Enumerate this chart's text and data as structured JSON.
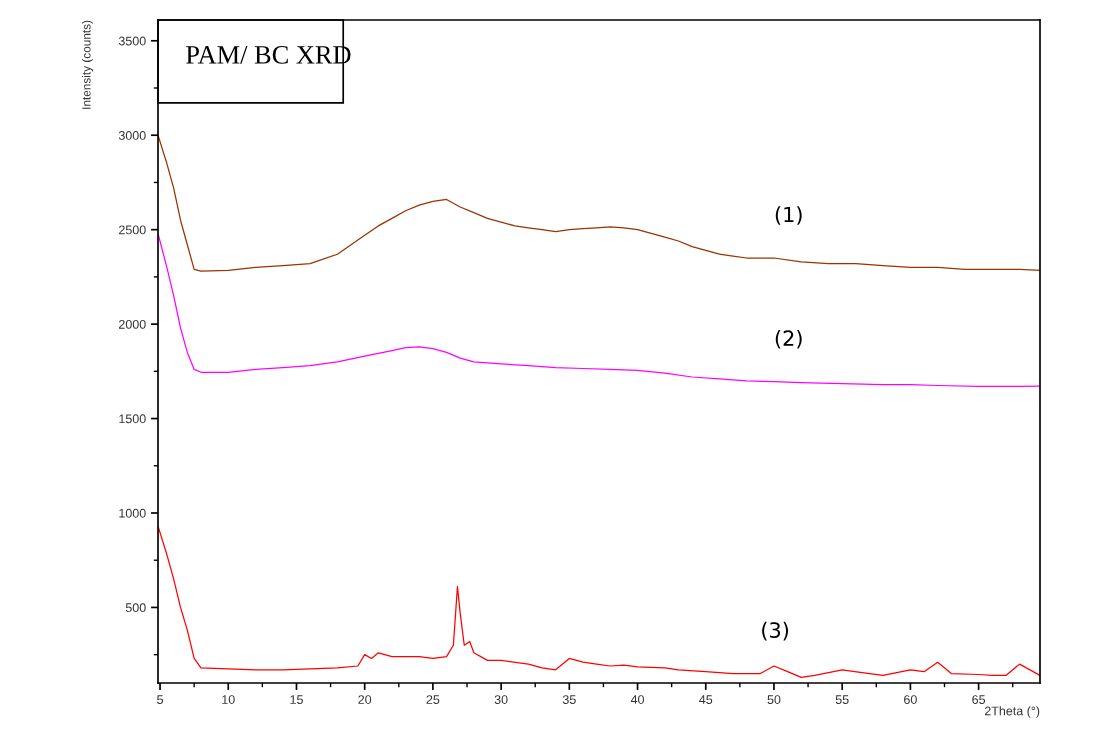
{
  "chart_data": {
    "type": "line",
    "title": "PAM/ BC XRD",
    "xlabel": "2Theta (°)",
    "ylabel": "Intensity (counts)",
    "xlim": [
      4.85,
      69.5
    ],
    "ylim": [
      100,
      3610
    ],
    "xticks": [
      5,
      {
        "value": 7.5,
        "label": null
      },
      10,
      {
        "value": 12.5,
        "label": null
      },
      15,
      {
        "value": 17.5,
        "label": null
      },
      20,
      {
        "value": 22.5,
        "label": null
      },
      25,
      {
        "value": 27.5,
        "label": null
      },
      30,
      {
        "value": 32.5,
        "label": null
      },
      35,
      {
        "value": 37.5,
        "label": null
      },
      40,
      {
        "value": 42.5,
        "label": null
      },
      45,
      {
        "value": 47.5,
        "label": null
      },
      50,
      {
        "value": 52.5,
        "label": null
      },
      55,
      {
        "value": 57.5,
        "label": null
      },
      60,
      {
        "value": 62.5,
        "label": null
      },
      65,
      {
        "value": 67.5,
        "label": null
      }
    ],
    "yticks": [
      {
        "value": 250,
        "label": null
      },
      500,
      {
        "value": 750,
        "label": null
      },
      1000,
      {
        "value": 1250,
        "label": null
      },
      1500,
      {
        "value": 1750,
        "label": null
      },
      2000,
      {
        "value": 2250,
        "label": null
      },
      2500,
      {
        "value": 2750,
        "label": null
      },
      3000,
      {
        "value": 3250,
        "label": null
      },
      3500
    ],
    "grid": false,
    "marker": "none",
    "line_style": "solid",
    "series": [
      {
        "name": "(1)",
        "color": "#993300",
        "x": [
          4.85,
          5.5,
          6,
          6.5,
          7,
          7.5,
          8,
          10,
          12,
          14,
          16,
          18,
          19,
          20,
          21,
          22,
          23,
          24,
          25,
          26,
          26.5,
          27,
          28,
          29,
          30,
          31,
          32,
          33,
          34,
          35,
          36,
          37,
          38,
          39,
          40,
          41,
          42,
          43,
          44,
          45,
          46,
          47,
          48,
          50,
          52,
          54,
          56,
          58,
          60,
          62,
          64,
          66,
          68,
          69.5
        ],
        "values": [
          3000,
          2850,
          2720,
          2550,
          2420,
          2290,
          2280,
          2285,
          2300,
          2310,
          2320,
          2370,
          2420,
          2470,
          2520,
          2560,
          2600,
          2630,
          2650,
          2660,
          2640,
          2620,
          2590,
          2560,
          2540,
          2520,
          2510,
          2500,
          2490,
          2500,
          2505,
          2510,
          2515,
          2510,
          2500,
          2480,
          2460,
          2440,
          2410,
          2390,
          2370,
          2360,
          2350,
          2350,
          2330,
          2320,
          2320,
          2310,
          2300,
          2300,
          2290,
          2290,
          2290,
          2285
        ]
      },
      {
        "name": "(2)",
        "color": "#ff00ff",
        "x": [
          4.85,
          5.5,
          6,
          6.5,
          7,
          7.5,
          8,
          10,
          12,
          14,
          16,
          18,
          20,
          22,
          23,
          24,
          25,
          26,
          27,
          28,
          30,
          32,
          34,
          36,
          38,
          40,
          42,
          44,
          46,
          48,
          50,
          52,
          55,
          58,
          60,
          62,
          65,
          68,
          69.5
        ],
        "values": [
          2480,
          2300,
          2150,
          1980,
          1850,
          1760,
          1745,
          1745,
          1760,
          1770,
          1780,
          1800,
          1830,
          1860,
          1875,
          1880,
          1870,
          1850,
          1820,
          1800,
          1790,
          1780,
          1770,
          1765,
          1760,
          1755,
          1740,
          1720,
          1710,
          1700,
          1695,
          1690,
          1685,
          1680,
          1680,
          1675,
          1670,
          1670,
          1672
        ]
      },
      {
        "name": "(3)",
        "color": "#ff0000",
        "x": [
          4.85,
          5.5,
          6,
          6.5,
          7,
          7.5,
          8,
          10,
          12,
          14,
          16,
          18,
          19.5,
          20,
          20.5,
          21,
          22,
          23,
          24,
          25,
          26,
          26.5,
          26.8,
          27,
          27.3,
          27.7,
          28,
          29,
          30,
          32,
          33,
          34,
          35,
          36,
          37,
          38,
          39,
          40,
          42,
          43,
          45,
          47,
          49,
          50,
          51,
          52,
          53,
          55,
          57,
          58,
          60,
          61,
          62,
          63,
          65,
          66,
          67,
          68,
          69,
          69.5
        ],
        "values": [
          930,
          780,
          650,
          500,
          380,
          230,
          180,
          175,
          170,
          170,
          175,
          180,
          190,
          250,
          230,
          260,
          240,
          240,
          240,
          230,
          240,
          300,
          610,
          470,
          300,
          320,
          260,
          220,
          220,
          200,
          180,
          170,
          230,
          210,
          200,
          190,
          195,
          185,
          180,
          170,
          160,
          150,
          150,
          190,
          160,
          130,
          140,
          170,
          150,
          140,
          170,
          160,
          210,
          150,
          145,
          140,
          140,
          200,
          160,
          140
        ]
      }
    ]
  }
}
